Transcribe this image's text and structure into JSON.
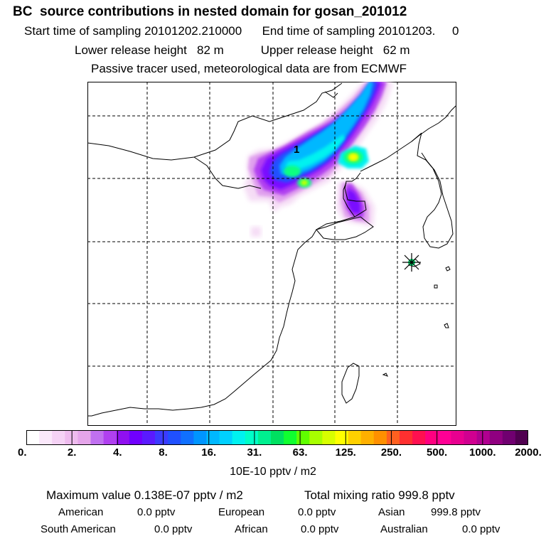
{
  "header": {
    "title": "BC  source contributions in nested domain for gosan_201012",
    "start_label": "Start time of sampling 20101202.210000",
    "end_label": "End time of sampling 20101203.     0",
    "lower_label": "Lower release height   82 m",
    "upper_label": "Upper release height   62 m",
    "tracer_label": "Passive tracer used, meteorological data are from ECMWF"
  },
  "map": {
    "site_marker": "asterisk-star-icon",
    "site_label": "1",
    "plume_colors": [
      "#f5dcf5",
      "#e0a0ee",
      "#b040f0",
      "#7a10ff",
      "#2050ff",
      "#00b8ff",
      "#00f2f0",
      "#10ff80",
      "#c8ff00",
      "#ffff00"
    ],
    "coast_color": "#000000",
    "grid_color": "#000000"
  },
  "colorbar": {
    "colors": [
      "#ffffff",
      "#fbe8fb",
      "#f5d2f5",
      "#eebbee",
      "#e5a5ea",
      "#c070f0",
      "#b040f0",
      "#9010f0",
      "#7000ff",
      "#5a1aff",
      "#3b3bff",
      "#2050ff",
      "#1070ff",
      "#0095ff",
      "#00b8ff",
      "#00d0ff",
      "#00f2f0",
      "#00ffc8",
      "#00f090",
      "#00e060",
      "#10ff30",
      "#60ff00",
      "#a8ff00",
      "#d8ff00",
      "#ffff00",
      "#ffd000",
      "#ffb000",
      "#ff9000",
      "#ff6020",
      "#ff3030",
      "#ff1050",
      "#ff0080",
      "#ff0095",
      "#e80090",
      "#d00090",
      "#b00090",
      "#900080",
      "#700070",
      "#500050"
    ],
    "ticks": [
      "0.",
      "2.",
      "4.",
      "8.",
      "16.",
      "31.",
      "63.",
      "125.",
      "250.",
      "500.",
      "1000.",
      "2000."
    ],
    "unit": "10E-10 pptv / m2"
  },
  "summary": {
    "max_label": "Maximum value  0.138E-07 pptv / m2",
    "total_label": "Total mixing ratio      999.8 pptv",
    "american_label": "American",
    "american_value": "0.0 pptv",
    "european_label": "European",
    "european_value": "0.0 pptv",
    "asian_label": "Asian",
    "asian_value": "999.8 pptv",
    "south_american_label": "South American",
    "south_american_value": "0.0 pptv",
    "african_label": "African",
    "african_value": "0.0 pptv",
    "australian_label": "Australian",
    "australian_value": "0.0 pptv"
  }
}
